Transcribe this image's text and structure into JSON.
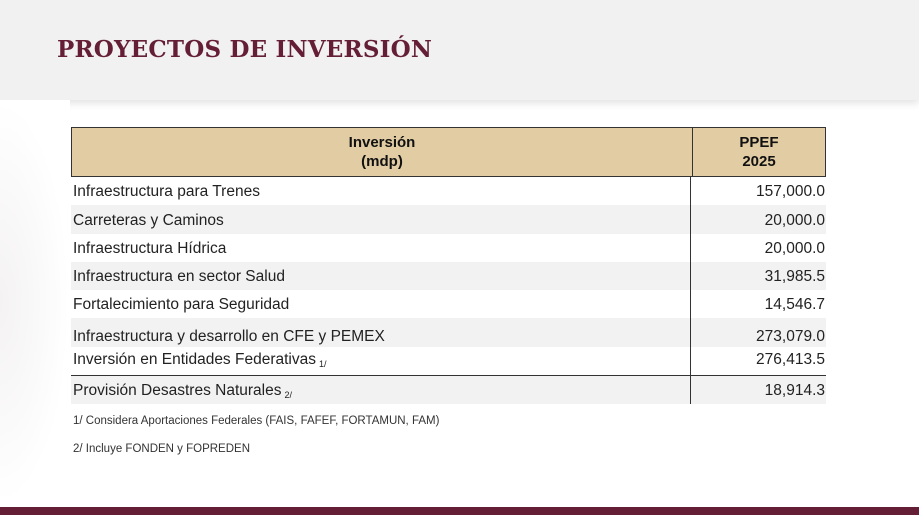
{
  "page": {
    "title": "PROYECTOS DE INVERSIÓN"
  },
  "table": {
    "header": {
      "col1_line1": "Inversión",
      "col1_line2": "(mdp)",
      "col2_line1": "PPEF",
      "col2_line2": "2025"
    },
    "rows": [
      {
        "label": "Infraestructura para Trenes",
        "note": "",
        "value": "157,000.0"
      },
      {
        "label": "Carreteras y Caminos",
        "note": "",
        "value": "20,000.0"
      },
      {
        "label": "Infraestructura Hídrica",
        "note": "",
        "value": "20,000.0"
      },
      {
        "label": "Infraestructura en sector Salud",
        "note": "",
        "value": "31,985.5"
      },
      {
        "label": "Fortalecimiento para Seguridad",
        "note": "",
        "value": "14,546.7"
      },
      {
        "label": "Infraestructura y desarrollo en CFE y PEMEX",
        "note": "",
        "value": "273,079.0"
      },
      {
        "label": "Inversión en Entidades Federativas",
        "note": "1/",
        "value": "276,413.5"
      },
      {
        "label": "Provisión Desastres Naturales",
        "note": "2/",
        "value": "18,914.3"
      }
    ]
  },
  "footnotes": [
    "1/ Considera Aportaciones Federales (FAIS, FAFEF, FORTAMUN, FAM)",
    "2/ Incluye FONDEN y FOPREDEN"
  ],
  "colors": {
    "brand": "#641e35",
    "header_fill": "#e2cca4"
  }
}
